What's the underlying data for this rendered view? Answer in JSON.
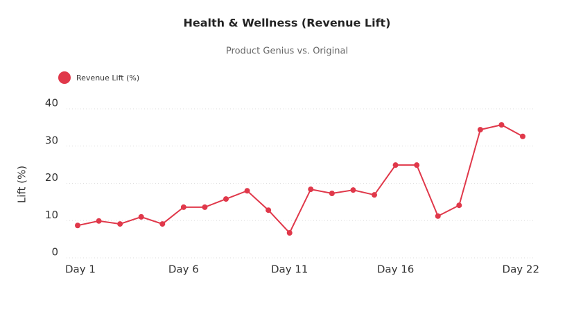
{
  "chart_data": {
    "type": "line",
    "title": "Health & Wellness (Revenue Lift)",
    "subtitle": "Product Genius vs. Original",
    "y_label": "Lift (%)",
    "categories": [
      "Day 1",
      null,
      null,
      null,
      null,
      "Day 6",
      null,
      null,
      null,
      null,
      "Day 11",
      null,
      null,
      null,
      null,
      "Day 16",
      null,
      null,
      null,
      null,
      null,
      "Day 22"
    ],
    "series": [
      {
        "name": "Revenue Lift (%)",
        "color": "#e0384a",
        "values": [
          8.7,
          9.9,
          9.1,
          11.0,
          9.1,
          13.6,
          13.6,
          15.8,
          18.0,
          12.8,
          6.7,
          18.4,
          17.3,
          18.2,
          16.9,
          24.9,
          24.9,
          11.2,
          14.1,
          34.4,
          35.7,
          32.6
        ]
      }
    ],
    "ylim": [
      0,
      40
    ],
    "yticks": [
      0,
      10,
      20,
      30,
      40
    ],
    "grid": true,
    "legend": "top-left"
  }
}
